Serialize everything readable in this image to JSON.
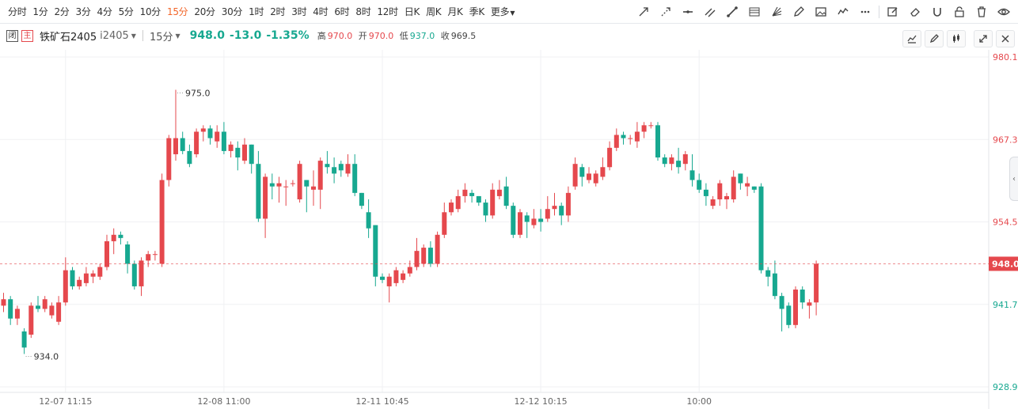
{
  "periods": [
    {
      "label": "分时"
    },
    {
      "label": "1分"
    },
    {
      "label": "2分"
    },
    {
      "label": "3分"
    },
    {
      "label": "4分"
    },
    {
      "label": "5分"
    },
    {
      "label": "10分"
    },
    {
      "label": "15分",
      "active": true
    },
    {
      "label": "20分"
    },
    {
      "label": "30分"
    },
    {
      "label": "1时"
    },
    {
      "label": "2时"
    },
    {
      "label": "3时"
    },
    {
      "label": "4时"
    },
    {
      "label": "6时"
    },
    {
      "label": "8时"
    },
    {
      "label": "12时"
    },
    {
      "label": "日K"
    },
    {
      "label": "周K"
    },
    {
      "label": "月K"
    },
    {
      "label": "季K"
    }
  ],
  "more_label": "更多",
  "tools": [
    "arrow-line-icon",
    "dashed-arrow-icon",
    "horizontal-line-icon",
    "parallel-line-icon",
    "segment-icon",
    "fibonacci-icon",
    "fan-icon",
    "pencil-icon",
    "image-icon",
    "wave-icon",
    "dots-more-icon",
    "edit-icon",
    "eraser-icon",
    "magnet-icon",
    "lock-icon",
    "trash-icon",
    "eye-icon"
  ],
  "symbol": {
    "badge_1": "闭",
    "badge_2": "主",
    "name": "铁矿石2405",
    "code": "i2405",
    "interval": "15分",
    "price": "948.0",
    "change": "-13.0",
    "change_pct": "-1.35%",
    "high_label": "高",
    "high": "970.0",
    "open_label": "开",
    "open": "970.0",
    "low_label": "低",
    "low": "937.0",
    "close_label": "收",
    "close": "969.5"
  },
  "chart_data": {
    "type": "candlestick",
    "y_ticks": [
      "980.1",
      "967.3",
      "954.5",
      "941.7",
      "928.9"
    ],
    "ylim": [
      928.9,
      980.1
    ],
    "x_ticks": [
      {
        "index": 9,
        "label": "12-07 11:15"
      },
      {
        "index": 32,
        "label": "12-08 11:00"
      },
      {
        "index": 55,
        "label": "12-11 10:45"
      },
      {
        "index": 78,
        "label": "12-12 10:15"
      },
      {
        "index": 101,
        "label": "10:00"
      }
    ],
    "current_price": 948.0,
    "current_price_label": "948.0",
    "max_label": "975.0",
    "min_label": "934.0",
    "max_index": 25,
    "min_index": 3,
    "up_color": "#e5484d",
    "down_color": "#17a890",
    "candles": [
      [
        941.5,
        942.5,
        943.5,
        940.5
      ],
      [
        942.5,
        939.5,
        943.0,
        938.5
      ],
      [
        939.5,
        941.0,
        941.5,
        938.5
      ],
      [
        937.5,
        935.0,
        938.0,
        934.0
      ],
      [
        937.0,
        941.5,
        942.0,
        936.5
      ],
      [
        941.5,
        941.0,
        943.0,
        940.5
      ],
      [
        941.0,
        942.5,
        943.0,
        940.5
      ],
      [
        940.0,
        941.5,
        942.0,
        939.5
      ],
      [
        939.0,
        942.0,
        943.0,
        938.5
      ],
      [
        942.0,
        947.0,
        949.0,
        941.5
      ],
      [
        947.0,
        944.5,
        947.5,
        944.0
      ],
      [
        944.5,
        945.5,
        946.0,
        944.0
      ],
      [
        945.0,
        946.5,
        947.5,
        944.5
      ],
      [
        946.0,
        946.5,
        947.0,
        945.0
      ],
      [
        946.0,
        947.5,
        948.0,
        945.5
      ],
      [
        947.5,
        951.5,
        952.5,
        947.0
      ],
      [
        951.5,
        952.5,
        953.5,
        949.5
      ],
      [
        952.5,
        952.0,
        953.0,
        951.0
      ],
      [
        951.0,
        948.0,
        951.5,
        946.5
      ],
      [
        948.0,
        944.5,
        948.5,
        944.0
      ],
      [
        944.5,
        948.5,
        949.0,
        943.0
      ],
      [
        948.5,
        949.5,
        950.0,
        947.5
      ],
      [
        949.5,
        949.5,
        950.0,
        948.5
      ],
      [
        948.0,
        961.0,
        962.0,
        947.5
      ],
      [
        961.0,
        967.5,
        968.0,
        960.0
      ],
      [
        965.0,
        967.5,
        975.0,
        964.0
      ],
      [
        967.5,
        965.5,
        968.5,
        965.0
      ],
      [
        965.5,
        963.5,
        966.5,
        963.0
      ],
      [
        965.0,
        968.5,
        969.0,
        964.5
      ],
      [
        968.5,
        969.0,
        969.5,
        967.0
      ],
      [
        969.0,
        967.5,
        969.5,
        966.5
      ],
      [
        967.0,
        968.5,
        969.5,
        966.0
      ],
      [
        968.5,
        965.5,
        970.0,
        965.0
      ],
      [
        965.5,
        966.5,
        967.0,
        964.5
      ],
      [
        966.0,
        964.5,
        967.0,
        962.5
      ],
      [
        964.0,
        966.5,
        967.5,
        963.5
      ],
      [
        966.5,
        963.5,
        966.5,
        962.0
      ],
      [
        963.5,
        955.0,
        965.5,
        954.5
      ],
      [
        955.0,
        961.5,
        962.0,
        952.0
      ],
      [
        960.5,
        960.0,
        962.0,
        958.0
      ],
      [
        960.0,
        960.5,
        961.5,
        957.5
      ],
      [
        960.0,
        960.0,
        961.0,
        957.0
      ],
      [
        960.5,
        960.5,
        961.0,
        960.0
      ],
      [
        958.0,
        963.5,
        964.0,
        957.5
      ],
      [
        961.0,
        960.0,
        961.0,
        956.0
      ],
      [
        959.5,
        960.0,
        962.5,
        957.0
      ],
      [
        959.5,
        964.0,
        964.5,
        956.5
      ],
      [
        963.5,
        963.0,
        965.5,
        962.0
      ],
      [
        963.0,
        962.0,
        964.5,
        960.5
      ],
      [
        963.5,
        962.5,
        964.0,
        961.5
      ],
      [
        962.0,
        963.5,
        965.0,
        961.5
      ],
      [
        963.5,
        959.0,
        965.0,
        958.5
      ],
      [
        959.0,
        957.0,
        959.0,
        956.5
      ],
      [
        956.0,
        953.5,
        958.0,
        952.0
      ],
      [
        954.0,
        946.0,
        954.0,
        944.5
      ],
      [
        946.0,
        945.5,
        946.5,
        945.0
      ],
      [
        944.5,
        946.0,
        946.5,
        942.0
      ],
      [
        945.0,
        947.0,
        947.5,
        944.5
      ],
      [
        945.5,
        946.5,
        947.0,
        945.0
      ],
      [
        946.5,
        947.5,
        948.5,
        946.0
      ],
      [
        947.5,
        950.0,
        952.0,
        947.0
      ],
      [
        948.0,
        950.5,
        951.0,
        947.5
      ],
      [
        950.5,
        948.0,
        951.5,
        947.5
      ],
      [
        948.0,
        952.5,
        953.0,
        947.5
      ],
      [
        952.5,
        956.0,
        957.5,
        952.0
      ],
      [
        956.0,
        957.5,
        958.0,
        955.5
      ],
      [
        956.5,
        958.5,
        959.5,
        956.0
      ],
      [
        958.5,
        959.5,
        960.5,
        957.5
      ],
      [
        959.0,
        958.5,
        959.5,
        957.5
      ],
      [
        958.5,
        957.5,
        958.5,
        957.0
      ],
      [
        957.5,
        955.5,
        958.0,
        954.5
      ],
      [
        955.5,
        959.5,
        960.5,
        955.0
      ],
      [
        958.5,
        959.5,
        961.0,
        958.0
      ],
      [
        960.0,
        957.0,
        961.5,
        956.5
      ],
      [
        957.0,
        952.5,
        957.5,
        952.0
      ],
      [
        952.5,
        956.0,
        956.5,
        952.0
      ],
      [
        955.5,
        954.5,
        956.0,
        952.0
      ],
      [
        954.0,
        955.0,
        956.5,
        953.5
      ],
      [
        955.0,
        954.5,
        956.5,
        953.0
      ],
      [
        955.0,
        956.5,
        958.5,
        954.5
      ],
      [
        956.5,
        957.0,
        959.0,
        955.5
      ],
      [
        957.0,
        955.5,
        957.5,
        954.0
      ],
      [
        955.5,
        959.0,
        960.0,
        954.5
      ],
      [
        960.0,
        963.5,
        964.5,
        959.5
      ],
      [
        963.0,
        961.5,
        963.5,
        960.0
      ],
      [
        961.0,
        962.0,
        963.0,
        960.5
      ],
      [
        960.5,
        962.0,
        962.5,
        960.0
      ],
      [
        961.5,
        963.0,
        964.5,
        961.0
      ],
      [
        963.0,
        966.0,
        967.0,
        962.5
      ],
      [
        966.0,
        968.0,
        969.0,
        965.5
      ],
      [
        968.0,
        967.5,
        968.5,
        966.5
      ],
      [
        967.5,
        967.5,
        968.0,
        966.5
      ],
      [
        967.0,
        968.5,
        970.0,
        966.0
      ],
      [
        968.5,
        969.5,
        970.0,
        967.5
      ],
      [
        969.5,
        969.5,
        970.0,
        969.0
      ],
      [
        969.5,
        964.5,
        970.0,
        964.0
      ],
      [
        964.5,
        963.5,
        965.0,
        963.0
      ],
      [
        963.5,
        964.5,
        965.0,
        962.5
      ],
      [
        964.0,
        963.0,
        966.0,
        962.0
      ],
      [
        963.5,
        965.0,
        965.5,
        962.5
      ],
      [
        962.5,
        961.0,
        965.0,
        960.0
      ],
      [
        961.0,
        959.5,
        962.0,
        959.0
      ],
      [
        959.5,
        958.5,
        960.5,
        957.0
      ],
      [
        957.0,
        958.0,
        958.5,
        956.5
      ],
      [
        958.0,
        960.5,
        961.0,
        957.0
      ],
      [
        958.0,
        958.5,
        959.0,
        956.5
      ],
      [
        958.0,
        961.5,
        962.5,
        957.5
      ],
      [
        962.0,
        960.5,
        962.0,
        959.5
      ],
      [
        960.0,
        960.5,
        961.5,
        958.5
      ],
      [
        960.0,
        959.5,
        960.0,
        959.0
      ],
      [
        960.0,
        947.0,
        960.5,
        946.5
      ],
      [
        947.0,
        946.0,
        947.5,
        944.5
      ],
      [
        946.5,
        943.0,
        948.5,
        942.5
      ],
      [
        943.0,
        941.0,
        943.5,
        937.5
      ],
      [
        941.5,
        938.5,
        942.0,
        938.0
      ],
      [
        938.5,
        944.0,
        944.5,
        938.0
      ],
      [
        944.0,
        942.0,
        944.5,
        941.0
      ],
      [
        941.5,
        942.0,
        942.5,
        939.5
      ],
      [
        942.0,
        948.0,
        948.5,
        940.0
      ]
    ]
  }
}
